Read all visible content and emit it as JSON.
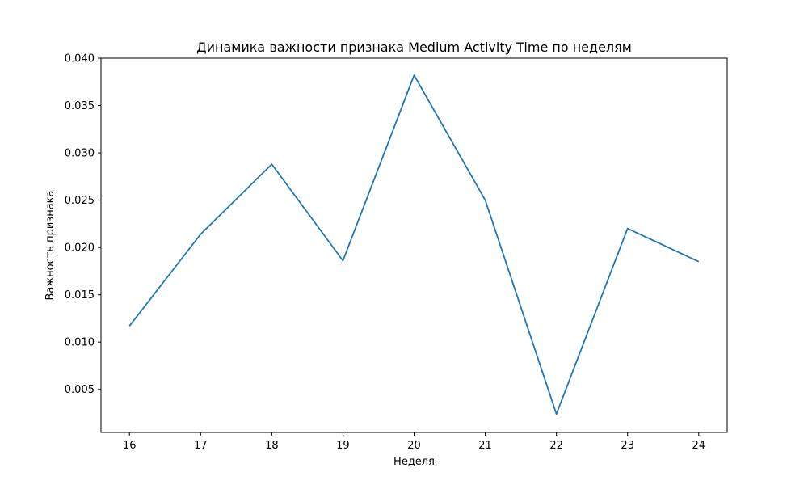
{
  "chart_data": {
    "type": "line",
    "title": "Динамика важности признака Medium Activity Time по неделям",
    "xlabel": "Неделя",
    "ylabel": "Важность признака",
    "x": [
      16,
      17,
      18,
      19,
      20,
      21,
      22,
      23,
      24
    ],
    "series": [
      {
        "values": [
          0.0117,
          0.0214,
          0.0288,
          0.0186,
          0.0382,
          0.025,
          0.0024,
          0.022,
          0.0185
        ]
      }
    ],
    "xlim": [
      15.6,
      24.4
    ],
    "ylim": [
      0.00045,
      0.04
    ],
    "xticks": [
      16,
      17,
      18,
      19,
      20,
      21,
      22,
      23,
      24
    ],
    "yticks": [
      0.005,
      0.01,
      0.015,
      0.02,
      0.025,
      0.03,
      0.035,
      0.04
    ],
    "ytick_labels": [
      "0.005",
      "0.010",
      "0.015",
      "0.020",
      "0.025",
      "0.030",
      "0.035",
      "0.040"
    ],
    "grid": false,
    "legend": "none",
    "colors": {
      "line": "#1f77b4",
      "axes": "#000000"
    }
  }
}
